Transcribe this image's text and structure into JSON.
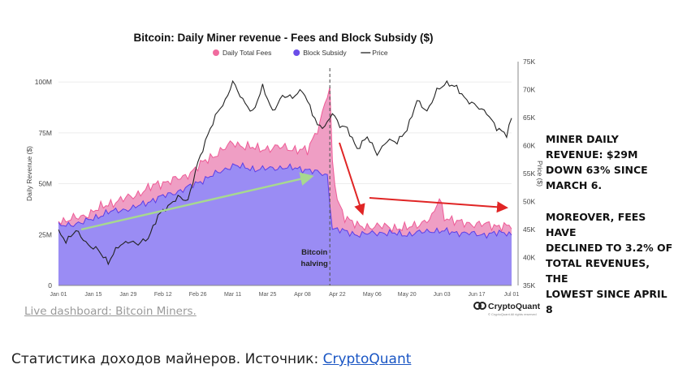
{
  "chart_data": {
    "type": "area",
    "title": "Bitcoin: Daily Miner revenue - Fees and Block Subsidy ($)",
    "ylabel": "Daily Revenue ($)",
    "y2label": "Price ($)",
    "ylim": [
      0,
      110000000
    ],
    "y2lim": [
      35000,
      75000
    ],
    "yticks": [
      {
        "v": 0,
        "label": "0"
      },
      {
        "v": 25000000,
        "label": "25M"
      },
      {
        "v": 50000000,
        "label": "50M"
      },
      {
        "v": 75000000,
        "label": "75M"
      },
      {
        "v": 100000000,
        "label": "100M"
      }
    ],
    "y2ticks": [
      {
        "v": 35000,
        "label": "35K"
      },
      {
        "v": 40000,
        "label": "40K"
      },
      {
        "v": 45000,
        "label": "45K"
      },
      {
        "v": 50000,
        "label": "50K"
      },
      {
        "v": 55000,
        "label": "55K"
      },
      {
        "v": 60000,
        "label": "60K"
      },
      {
        "v": 65000,
        "label": "65K"
      },
      {
        "v": 70000,
        "label": "70K"
      },
      {
        "v": 75000,
        "label": "75K"
      }
    ],
    "xticks": [
      {
        "d": 0,
        "label": "Jan 01"
      },
      {
        "d": 14,
        "label": "Jan 15"
      },
      {
        "d": 28,
        "label": "Jan 29"
      },
      {
        "d": 42,
        "label": "Feb 12"
      },
      {
        "d": 56,
        "label": "Feb 26"
      },
      {
        "d": 70,
        "label": "Mar 11"
      },
      {
        "d": 84,
        "label": "Mar 25"
      },
      {
        "d": 98,
        "label": "Apr 08"
      },
      {
        "d": 112,
        "label": "Apr 22"
      },
      {
        "d": 126,
        "label": "May 06"
      },
      {
        "d": 140,
        "label": "May 20"
      },
      {
        "d": 154,
        "label": "Jun 03"
      },
      {
        "d": 168,
        "label": "Jun 17"
      },
      {
        "d": 182,
        "label": "Jul 01"
      }
    ],
    "legend": [
      {
        "name": "Daily Total Fees",
        "color": "#f06b9e",
        "marker": "dot"
      },
      {
        "name": "Block Subsidy",
        "color": "#6a4de8",
        "marker": "dot"
      },
      {
        "name": "Price",
        "color": "#333333",
        "marker": "line"
      }
    ],
    "halving_label": [
      "Bitcoin",
      "halving"
    ],
    "halving_day": 109,
    "series_points": {
      "subsidy": [
        [
          0,
          29
        ],
        [
          10,
          31
        ],
        [
          20,
          36
        ],
        [
          30,
          38
        ],
        [
          40,
          43
        ],
        [
          50,
          47
        ],
        [
          60,
          53
        ],
        [
          70,
          59
        ],
        [
          80,
          57
        ],
        [
          90,
          58
        ],
        [
          100,
          57
        ],
        [
          108,
          54
        ],
        [
          110,
          28
        ],
        [
          120,
          25
        ],
        [
          130,
          26
        ],
        [
          140,
          25
        ],
        [
          150,
          27
        ],
        [
          160,
          26
        ],
        [
          170,
          25
        ],
        [
          180,
          26
        ],
        [
          182,
          25
        ]
      ],
      "total": [
        [
          0,
          31
        ],
        [
          10,
          34
        ],
        [
          20,
          40
        ],
        [
          30,
          44
        ],
        [
          40,
          50
        ],
        [
          50,
          53
        ],
        [
          60,
          62
        ],
        [
          70,
          70
        ],
        [
          80,
          67
        ],
        [
          90,
          68
        ],
        [
          100,
          66
        ],
        [
          105,
          80
        ],
        [
          107,
          90
        ],
        [
          109,
          96
        ],
        [
          110,
          60
        ],
        [
          112,
          42
        ],
        [
          115,
          34
        ],
        [
          120,
          29
        ],
        [
          130,
          29
        ],
        [
          140,
          28
        ],
        [
          150,
          33
        ],
        [
          153,
          43
        ],
        [
          155,
          34
        ],
        [
          160,
          31
        ],
        [
          170,
          30
        ],
        [
          180,
          29
        ],
        [
          182,
          29
        ]
      ],
      "price": [
        [
          0,
          44.5
        ],
        [
          3,
          42.8
        ],
        [
          7,
          45
        ],
        [
          12,
          42
        ],
        [
          16,
          41.5
        ],
        [
          20,
          39
        ],
        [
          24,
          42
        ],
        [
          28,
          43
        ],
        [
          32,
          42.3
        ],
        [
          36,
          43.5
        ],
        [
          40,
          47.5
        ],
        [
          44,
          49
        ],
        [
          48,
          51
        ],
        [
          52,
          50
        ],
        [
          56,
          57
        ],
        [
          60,
          62
        ],
        [
          64,
          66
        ],
        [
          67,
          68
        ],
        [
          70,
          71.5
        ],
        [
          74,
          68
        ],
        [
          78,
          66
        ],
        [
          82,
          70.5
        ],
        [
          86,
          66
        ],
        [
          90,
          69
        ],
        [
          94,
          68.5
        ],
        [
          98,
          70
        ],
        [
          101,
          67
        ],
        [
          104,
          63.5
        ],
        [
          107,
          63.3
        ],
        [
          110,
          66
        ],
        [
          113,
          63.5
        ],
        [
          116,
          63
        ],
        [
          120,
          59.5
        ],
        [
          124,
          61.5
        ],
        [
          128,
          58.5
        ],
        [
          132,
          61
        ],
        [
          136,
          60.5
        ],
        [
          140,
          63
        ],
        [
          144,
          68
        ],
        [
          148,
          66
        ],
        [
          152,
          70
        ],
        [
          156,
          71
        ],
        [
          160,
          70.5
        ],
        [
          164,
          68
        ],
        [
          168,
          67
        ],
        [
          172,
          66
        ],
        [
          176,
          63
        ],
        [
          180,
          62
        ],
        [
          182,
          65
        ]
      ]
    }
  },
  "annotations": {
    "right_text_1": "MINER DAILY\nREVENUE: $29M\nDOWN 63% SINCE\nMARCH 6.",
    "right_text_2": "MOREOVER, FEES HAVE\nDECLINED TO 3.2% OF\nTOTAL REVENUES, THE\nLOWEST SINCE APRIL 8"
  },
  "watermark": {
    "brand": "CryptoQuant",
    "sub": "© CryptoQuant All rights reserved"
  },
  "links": {
    "dashboard": "Live dashboard: Bitcoin Miners."
  },
  "caption": {
    "text": "Статистика доходов майнеров. Источник: ",
    "link": "CryptoQuant"
  },
  "colors": {
    "subsidy_fill": "#9a8cf4",
    "subsidy_line": "#5d3ee6",
    "fees_fill": "#ef9ec4",
    "fees_line": "#ee5b96",
    "price_line": "#222222",
    "arrow_red": "#e02525",
    "arrow_green": "#a7d98f"
  }
}
